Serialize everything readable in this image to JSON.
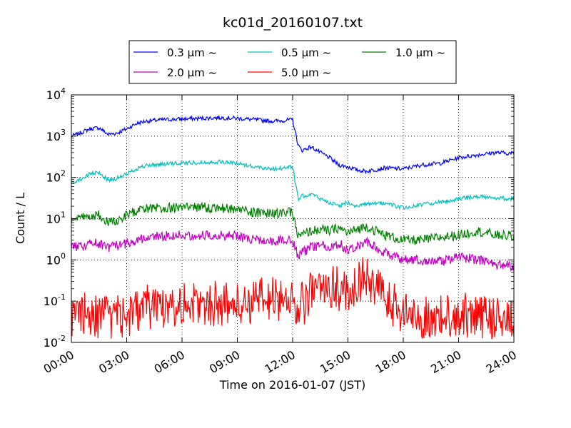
{
  "chart_data": {
    "type": "line",
    "title": "kc01d_20160107.txt",
    "xlabel": "Time on 2016-01-07 (JST)",
    "ylabel": "Count / L",
    "y_scale": "log",
    "ylim": [
      0.01,
      10000
    ],
    "xlim": [
      "00:00",
      "24:00"
    ],
    "x_ticks": [
      "00:00",
      "03:00",
      "06:00",
      "09:00",
      "12:00",
      "15:00",
      "18:00",
      "21:00",
      "24:00"
    ],
    "y_ticks": [
      {
        "base": "10",
        "exp": "-2"
      },
      {
        "base": "10",
        "exp": "-1"
      },
      {
        "base": "10",
        "exp": "0"
      },
      {
        "base": "10",
        "exp": "1"
      },
      {
        "base": "10",
        "exp": "2"
      },
      {
        "base": "10",
        "exp": "3"
      },
      {
        "base": "10",
        "exp": "4"
      }
    ],
    "grid": true,
    "legend_position": "top-center",
    "x_hours": [
      0,
      0.5,
      1,
      1.5,
      2,
      2.5,
      3,
      3.5,
      4,
      5,
      6,
      7,
      8,
      9,
      10,
      11,
      11.5,
      12,
      12.3,
      12.5,
      13,
      13.5,
      14,
      14.5,
      15,
      15.5,
      16,
      17,
      18,
      19,
      20,
      21,
      22,
      23,
      24
    ],
    "series": [
      {
        "name": "0.3 μm ~",
        "color": "#0000ff",
        "values": [
          1000,
          1200,
          1500,
          1600,
          1100,
          1200,
          1500,
          2000,
          2300,
          2500,
          2600,
          2700,
          2800,
          2700,
          2500,
          2300,
          2400,
          2500,
          600,
          450,
          550,
          400,
          300,
          200,
          180,
          150,
          140,
          170,
          160,
          200,
          220,
          300,
          350,
          400,
          380
        ]
      },
      {
        "name": "0.5 μm ~",
        "color": "#00bfbf",
        "values": [
          75,
          90,
          120,
          130,
          85,
          95,
          120,
          160,
          190,
          210,
          220,
          230,
          240,
          220,
          180,
          160,
          170,
          180,
          30,
          35,
          40,
          30,
          25,
          20,
          25,
          20,
          22,
          24,
          18,
          22,
          25,
          30,
          35,
          32,
          30
        ]
      },
      {
        "name": "1.0 μm ~",
        "color": "#008000",
        "values": [
          9,
          10,
          12,
          12,
          8.5,
          9,
          12,
          15,
          17,
          18,
          19,
          19,
          18,
          17,
          14,
          13,
          14,
          14,
          3.5,
          4,
          5,
          5.5,
          5,
          6,
          4.5,
          5.5,
          6.5,
          4,
          3,
          3,
          3.5,
          4,
          5,
          4,
          3.8
        ]
      },
      {
        "name": "2.0 μm ~",
        "color": "#bf00bf",
        "values": [
          2,
          2.2,
          2.5,
          2.5,
          2,
          2.2,
          2.5,
          3,
          3.5,
          3.8,
          4,
          4,
          4,
          3.8,
          3,
          2.8,
          3,
          3,
          1.2,
          1.5,
          2,
          2.2,
          2,
          2.5,
          1.8,
          2.2,
          2.8,
          1.5,
          1,
          1,
          0.9,
          1.2,
          1,
          0.8,
          0.7
        ]
      },
      {
        "name": "5.0 μm ~",
        "color": "#ff0000",
        "values": [
          0.04,
          0.05,
          0.05,
          0.04,
          0.04,
          0.05,
          0.04,
          0.06,
          0.07,
          0.08,
          0.09,
          0.08,
          0.09,
          0.08,
          0.1,
          0.12,
          0.11,
          0.13,
          0.05,
          0.08,
          0.15,
          0.2,
          0.25,
          0.2,
          0.15,
          0.3,
          0.35,
          0.12,
          0.05,
          0.04,
          0.04,
          0.05,
          0.04,
          0.04,
          0.04
        ]
      }
    ]
  }
}
